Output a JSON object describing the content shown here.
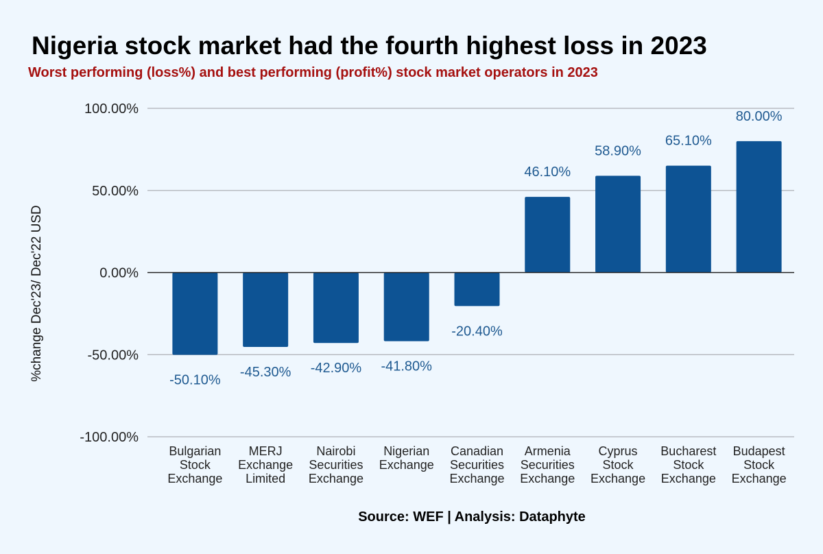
{
  "title": "Nigeria stock market had the fourth highest loss in 2023",
  "subtitle": "Worst performing (loss%) and best performing (profit%) stock market operators in 2023",
  "source": "Source: WEF | Analysis: Dataphyte",
  "colors": {
    "bar": "#0d5394",
    "data_label": "#1f5a91",
    "subtitle": "#a5100f",
    "grid": "#b8bcc2",
    "zero_line": "#222222",
    "background": "#eff7fe"
  },
  "chart_data": {
    "type": "bar",
    "categories": [
      [
        "Bulgarian",
        "Stock",
        "Exchange"
      ],
      [
        "MERJ",
        "Exchange",
        "Limited"
      ],
      [
        "Nairobi",
        "Securities",
        "Exchange"
      ],
      [
        "Nigerian",
        "Exchange"
      ],
      [
        "Canadian",
        "Securities",
        "Exchange"
      ],
      [
        "Armenia",
        "Securities",
        "Exchange"
      ],
      [
        "Cyprus",
        "Stock",
        "Exchange"
      ],
      [
        "Bucharest",
        "Stock",
        "Exchange"
      ],
      [
        "Budapest",
        "Stock",
        "Exchange"
      ]
    ],
    "values": [
      -50.1,
      -45.3,
      -42.9,
      -41.8,
      -20.4,
      46.1,
      58.9,
      65.1,
      80.0
    ],
    "data_labels": [
      "-50.10%",
      "-45.30%",
      "-42.90%",
      "-41.80%",
      "-20.40%",
      "46.10%",
      "58.90%",
      "65.10%",
      "80.00%"
    ],
    "ylabel": "%change Dec'23/ Dec'22 USD",
    "ylim": [
      -100,
      100
    ],
    "yticks": [
      100,
      50,
      0,
      -50,
      -100
    ],
    "ytick_labels": [
      "100.00%",
      "50.00%",
      "0.00%",
      "-50.00%",
      "-100.00%"
    ],
    "grid": true,
    "legend": "none"
  }
}
